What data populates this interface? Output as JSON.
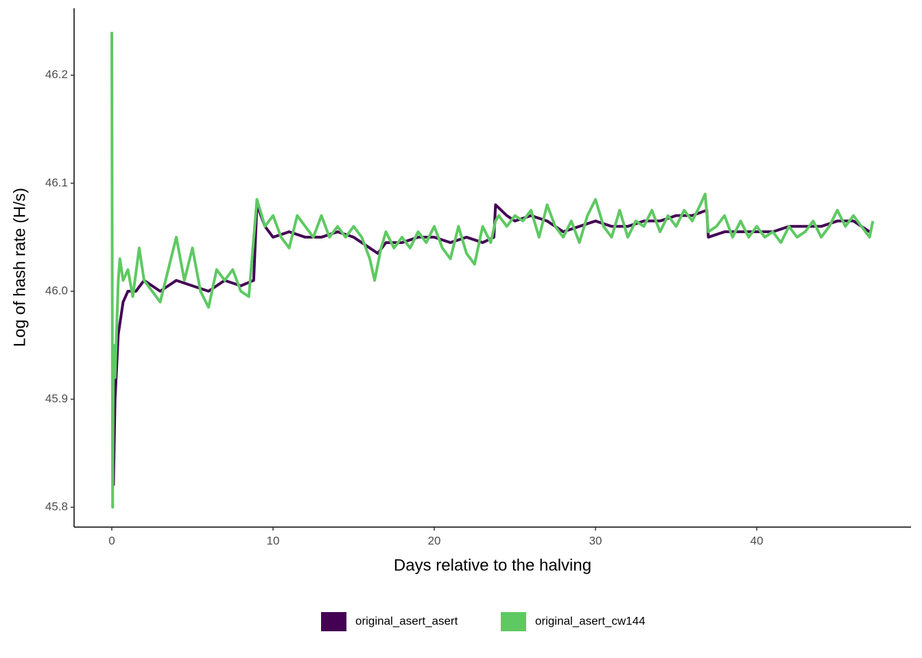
{
  "chart_data": {
    "type": "line",
    "x_label": "Days relative to the halving",
    "y_label": "Log of hash rate (H/s)",
    "xlim": [
      -2.34,
      49.57
    ],
    "ylim": [
      45.7816,
      46.262
    ],
    "xticks": [
      0,
      10,
      20,
      30,
      40
    ],
    "yticks": [
      45.8,
      45.9,
      {
        "value": 46,
        "label": "46.0"
      },
      46.1,
      46.2
    ],
    "grid": false,
    "legend": "bottom",
    "series": [
      {
        "name": "original_asert_asert",
        "color": "#440154",
        "x": [
          0.1,
          0.2,
          0.4,
          0.7,
          1.0,
          1.5,
          2,
          3,
          4,
          5,
          6,
          7,
          8,
          8.8,
          9,
          9.5,
          10,
          11,
          12,
          13,
          14,
          15,
          16,
          16.5,
          17,
          18,
          19,
          20,
          21,
          22,
          23,
          23.7,
          23.8,
          24.5,
          25,
          26,
          27,
          28,
          29,
          30,
          31,
          32,
          33,
          34,
          35,
          36,
          36.9,
          37,
          38,
          39,
          40,
          41,
          42,
          43,
          44,
          45,
          46,
          47
        ],
        "values": [
          45.82,
          45.9,
          45.96,
          45.99,
          46.0,
          46.0,
          46.01,
          46.0,
          46.01,
          46.005,
          46.0,
          46.01,
          46.005,
          46.01,
          46.08,
          46.06,
          46.05,
          46.055,
          46.05,
          46.05,
          46.055,
          46.05,
          46.04,
          46.035,
          46.045,
          46.045,
          46.05,
          46.05,
          46.045,
          46.05,
          46.045,
          46.05,
          46.08,
          46.07,
          46.065,
          46.07,
          46.065,
          46.055,
          46.06,
          46.065,
          46.06,
          46.06,
          46.065,
          46.065,
          46.07,
          46.07,
          46.075,
          46.05,
          46.055,
          46.055,
          46.055,
          46.055,
          46.06,
          46.06,
          46.06,
          46.065,
          46.065,
          46.055
        ]
      },
      {
        "name": "original_asert_cw144",
        "color": "#5ec962",
        "x": [
          0,
          0.05,
          0.1,
          0.2,
          0.4,
          0.5,
          0.7,
          1.0,
          1.3,
          1.7,
          2.0,
          2.5,
          3.0,
          3.5,
          4.0,
          4.5,
          5.0,
          5.5,
          6.0,
          6.5,
          7.0,
          7.5,
          8.0,
          8.5,
          9.0,
          9.5,
          10,
          10.5,
          11,
          11.5,
          12,
          12.5,
          13,
          13.5,
          14,
          14.5,
          15,
          15.5,
          16,
          16.3,
          16.7,
          17,
          17.5,
          18,
          18.5,
          19,
          19.5,
          20,
          20.5,
          21,
          21.5,
          22,
          22.5,
          23,
          23.5,
          23.8,
          24,
          24.5,
          25,
          25.5,
          26,
          26.5,
          27,
          27.5,
          28,
          28.5,
          29,
          29.5,
          30,
          30.5,
          31,
          31.5,
          32,
          32.5,
          33,
          33.5,
          34,
          34.5,
          35,
          35.5,
          36,
          36.5,
          36.8,
          37,
          37.5,
          38,
          38.5,
          39,
          39.5,
          40,
          40.5,
          41,
          41.5,
          42,
          42.5,
          43,
          43.5,
          44,
          44.5,
          45,
          45.5,
          46,
          46.5,
          47,
          47.2
        ],
        "values": [
          46.24,
          45.8,
          45.95,
          45.92,
          46.01,
          46.03,
          46.01,
          46.02,
          45.995,
          46.04,
          46.01,
          46.0,
          45.99,
          46.02,
          46.05,
          46.01,
          46.04,
          46.0,
          45.985,
          46.02,
          46.01,
          46.02,
          46.0,
          45.995,
          46.085,
          46.06,
          46.07,
          46.05,
          46.04,
          46.07,
          46.06,
          46.05,
          46.07,
          46.05,
          46.06,
          46.05,
          46.06,
          46.05,
          46.03,
          46.01,
          46.04,
          46.055,
          46.04,
          46.05,
          46.04,
          46.055,
          46.045,
          46.06,
          46.04,
          46.03,
          46.06,
          46.035,
          46.025,
          46.06,
          46.045,
          46.065,
          46.07,
          46.06,
          46.07,
          46.065,
          46.075,
          46.05,
          46.08,
          46.06,
          46.05,
          46.065,
          46.045,
          46.07,
          46.085,
          46.06,
          46.05,
          46.075,
          46.05,
          46.065,
          46.06,
          46.075,
          46.055,
          46.07,
          46.06,
          46.075,
          46.065,
          46.08,
          46.09,
          46.055,
          46.06,
          46.07,
          46.05,
          46.065,
          46.05,
          46.06,
          46.05,
          46.055,
          46.045,
          46.06,
          46.05,
          46.055,
          46.065,
          46.05,
          46.06,
          46.075,
          46.06,
          46.07,
          46.06,
          46.05,
          46.065
        ]
      }
    ]
  }
}
